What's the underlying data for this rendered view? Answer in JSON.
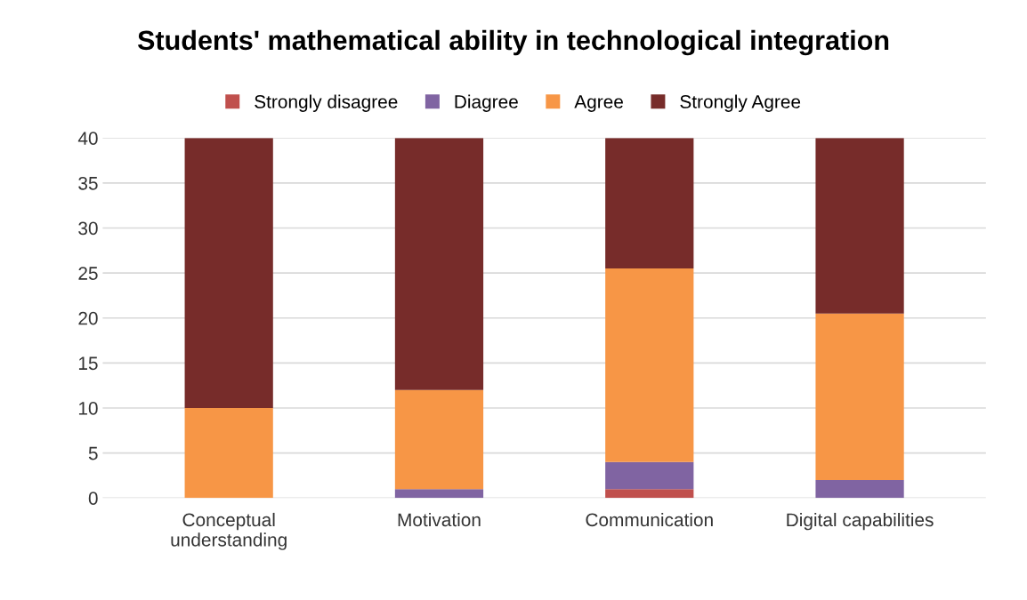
{
  "chart_data": {
    "type": "bar",
    "title": "Students' mathematical ability in technological integration",
    "categories": [
      "Conceptual\nunderstanding",
      "Motivation",
      "Communication",
      "Digital capabilities"
    ],
    "stacked": true,
    "series": [
      {
        "name": "Strongly disagree",
        "color": "#c0504d",
        "values": [
          0,
          0,
          1,
          0
        ]
      },
      {
        "name": "Diagree",
        "color": "#8064a2",
        "values": [
          0,
          1,
          3,
          2
        ]
      },
      {
        "name": "Agree",
        "color": "#f79646",
        "values": [
          10,
          11,
          21.5,
          18.5
        ]
      },
      {
        "name": "Strongly Agree",
        "color": "#772c2a",
        "values": [
          30,
          28,
          14.5,
          19.5
        ]
      }
    ],
    "ylim": [
      0,
      40
    ],
    "yticks": [
      0,
      5,
      10,
      15,
      20,
      25,
      30,
      35,
      40
    ],
    "grid": "y",
    "legend": "top"
  }
}
